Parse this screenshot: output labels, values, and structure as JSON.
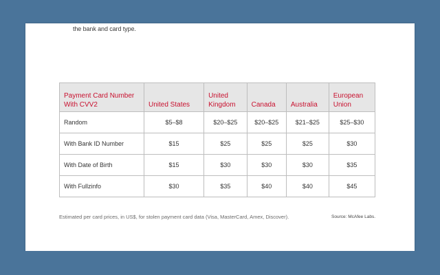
{
  "intro_text": "the bank and card type.",
  "table": {
    "headers": [
      [
        "Payment Card Number",
        "With CVV2"
      ],
      [
        "United States"
      ],
      [
        "United",
        "Kingdom"
      ],
      [
        "Canada"
      ],
      [
        "Australia"
      ],
      [
        "European",
        "Union"
      ]
    ],
    "rows": [
      {
        "label": "Random",
        "values": [
          "$5–$8",
          "$20–$25",
          "$20–$25",
          "$21–$25",
          "$25–$30"
        ]
      },
      {
        "label": "With Bank ID Number",
        "values": [
          "$15",
          "$25",
          "$25",
          "$25",
          "$30"
        ]
      },
      {
        "label": "With Date of Birth",
        "values": [
          "$15",
          "$30",
          "$30",
          "$30",
          "$35"
        ]
      },
      {
        "label": "With Fullzinfo",
        "values": [
          "$30",
          "$35",
          "$40",
          "$40",
          "$45"
        ]
      }
    ]
  },
  "caption": "Estimated per card prices, in US$, for stolen payment card data (Visa, MasterCard, Amex, Discover).",
  "source": "Source: McAfee Labs.",
  "colors": {
    "background": "#4a749a",
    "header_text": "#c8102e",
    "header_bg": "#e6e6e6"
  }
}
